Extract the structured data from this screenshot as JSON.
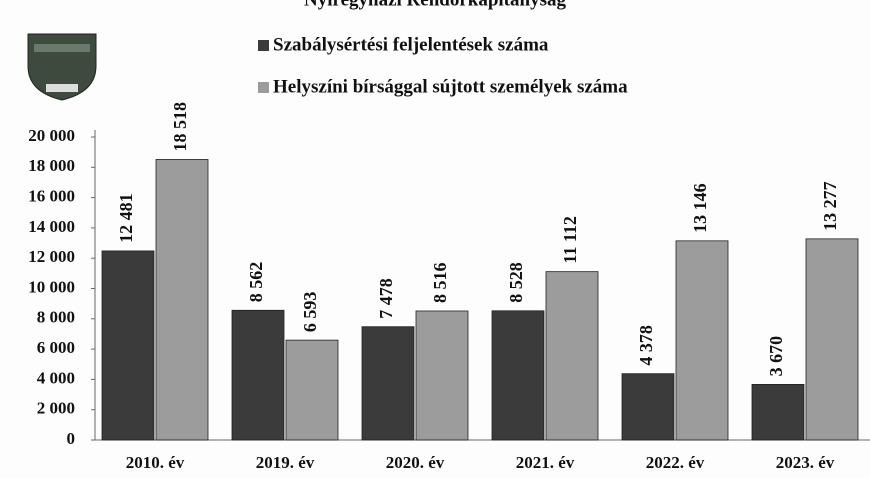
{
  "chart_data": {
    "type": "bar",
    "title": "Nyíregyházi Rendőrkapitányság",
    "categories": [
      "2010. év",
      "2019. év",
      "2020. év",
      "2021. év",
      "2022. év",
      "2023. év"
    ],
    "series": [
      {
        "name": "Szabálysértési feljelentések száma",
        "color": "#3b3b3b",
        "values": [
          12481,
          8562,
          7478,
          8528,
          4378,
          3670
        ],
        "value_labels": [
          "12 481",
          "8 562",
          "7 478",
          "8 528",
          "4 378",
          "3 670"
        ]
      },
      {
        "name": "Helyszíni bírsággal sújtott személyek száma",
        "color": "#9c9c9c",
        "values": [
          18518,
          6593,
          8516,
          11112,
          13146,
          13277
        ],
        "value_labels": [
          "18 518",
          "6 593",
          "8 516",
          "11 112",
          "13 146",
          "13 277"
        ]
      }
    ],
    "ylim": [
      0,
      20000
    ],
    "yticks": [
      0,
      {
        "value": 2000,
        "label": "2 000"
      },
      {
        "value": 4000,
        "label": "4 000"
      },
      {
        "value": 6000,
        "label": "6 000"
      },
      {
        "value": 8000,
        "label": "8 000"
      },
      {
        "value": 10000,
        "label": "10 000"
      },
      {
        "value": 12000,
        "label": "12 000"
      },
      {
        "value": 14000,
        "label": "14 000"
      },
      {
        "value": 16000,
        "label": "16 000"
      },
      {
        "value": 18000,
        "label": "18 000"
      },
      {
        "value": 20000,
        "label": "20 000"
      }
    ],
    "grid": false
  }
}
